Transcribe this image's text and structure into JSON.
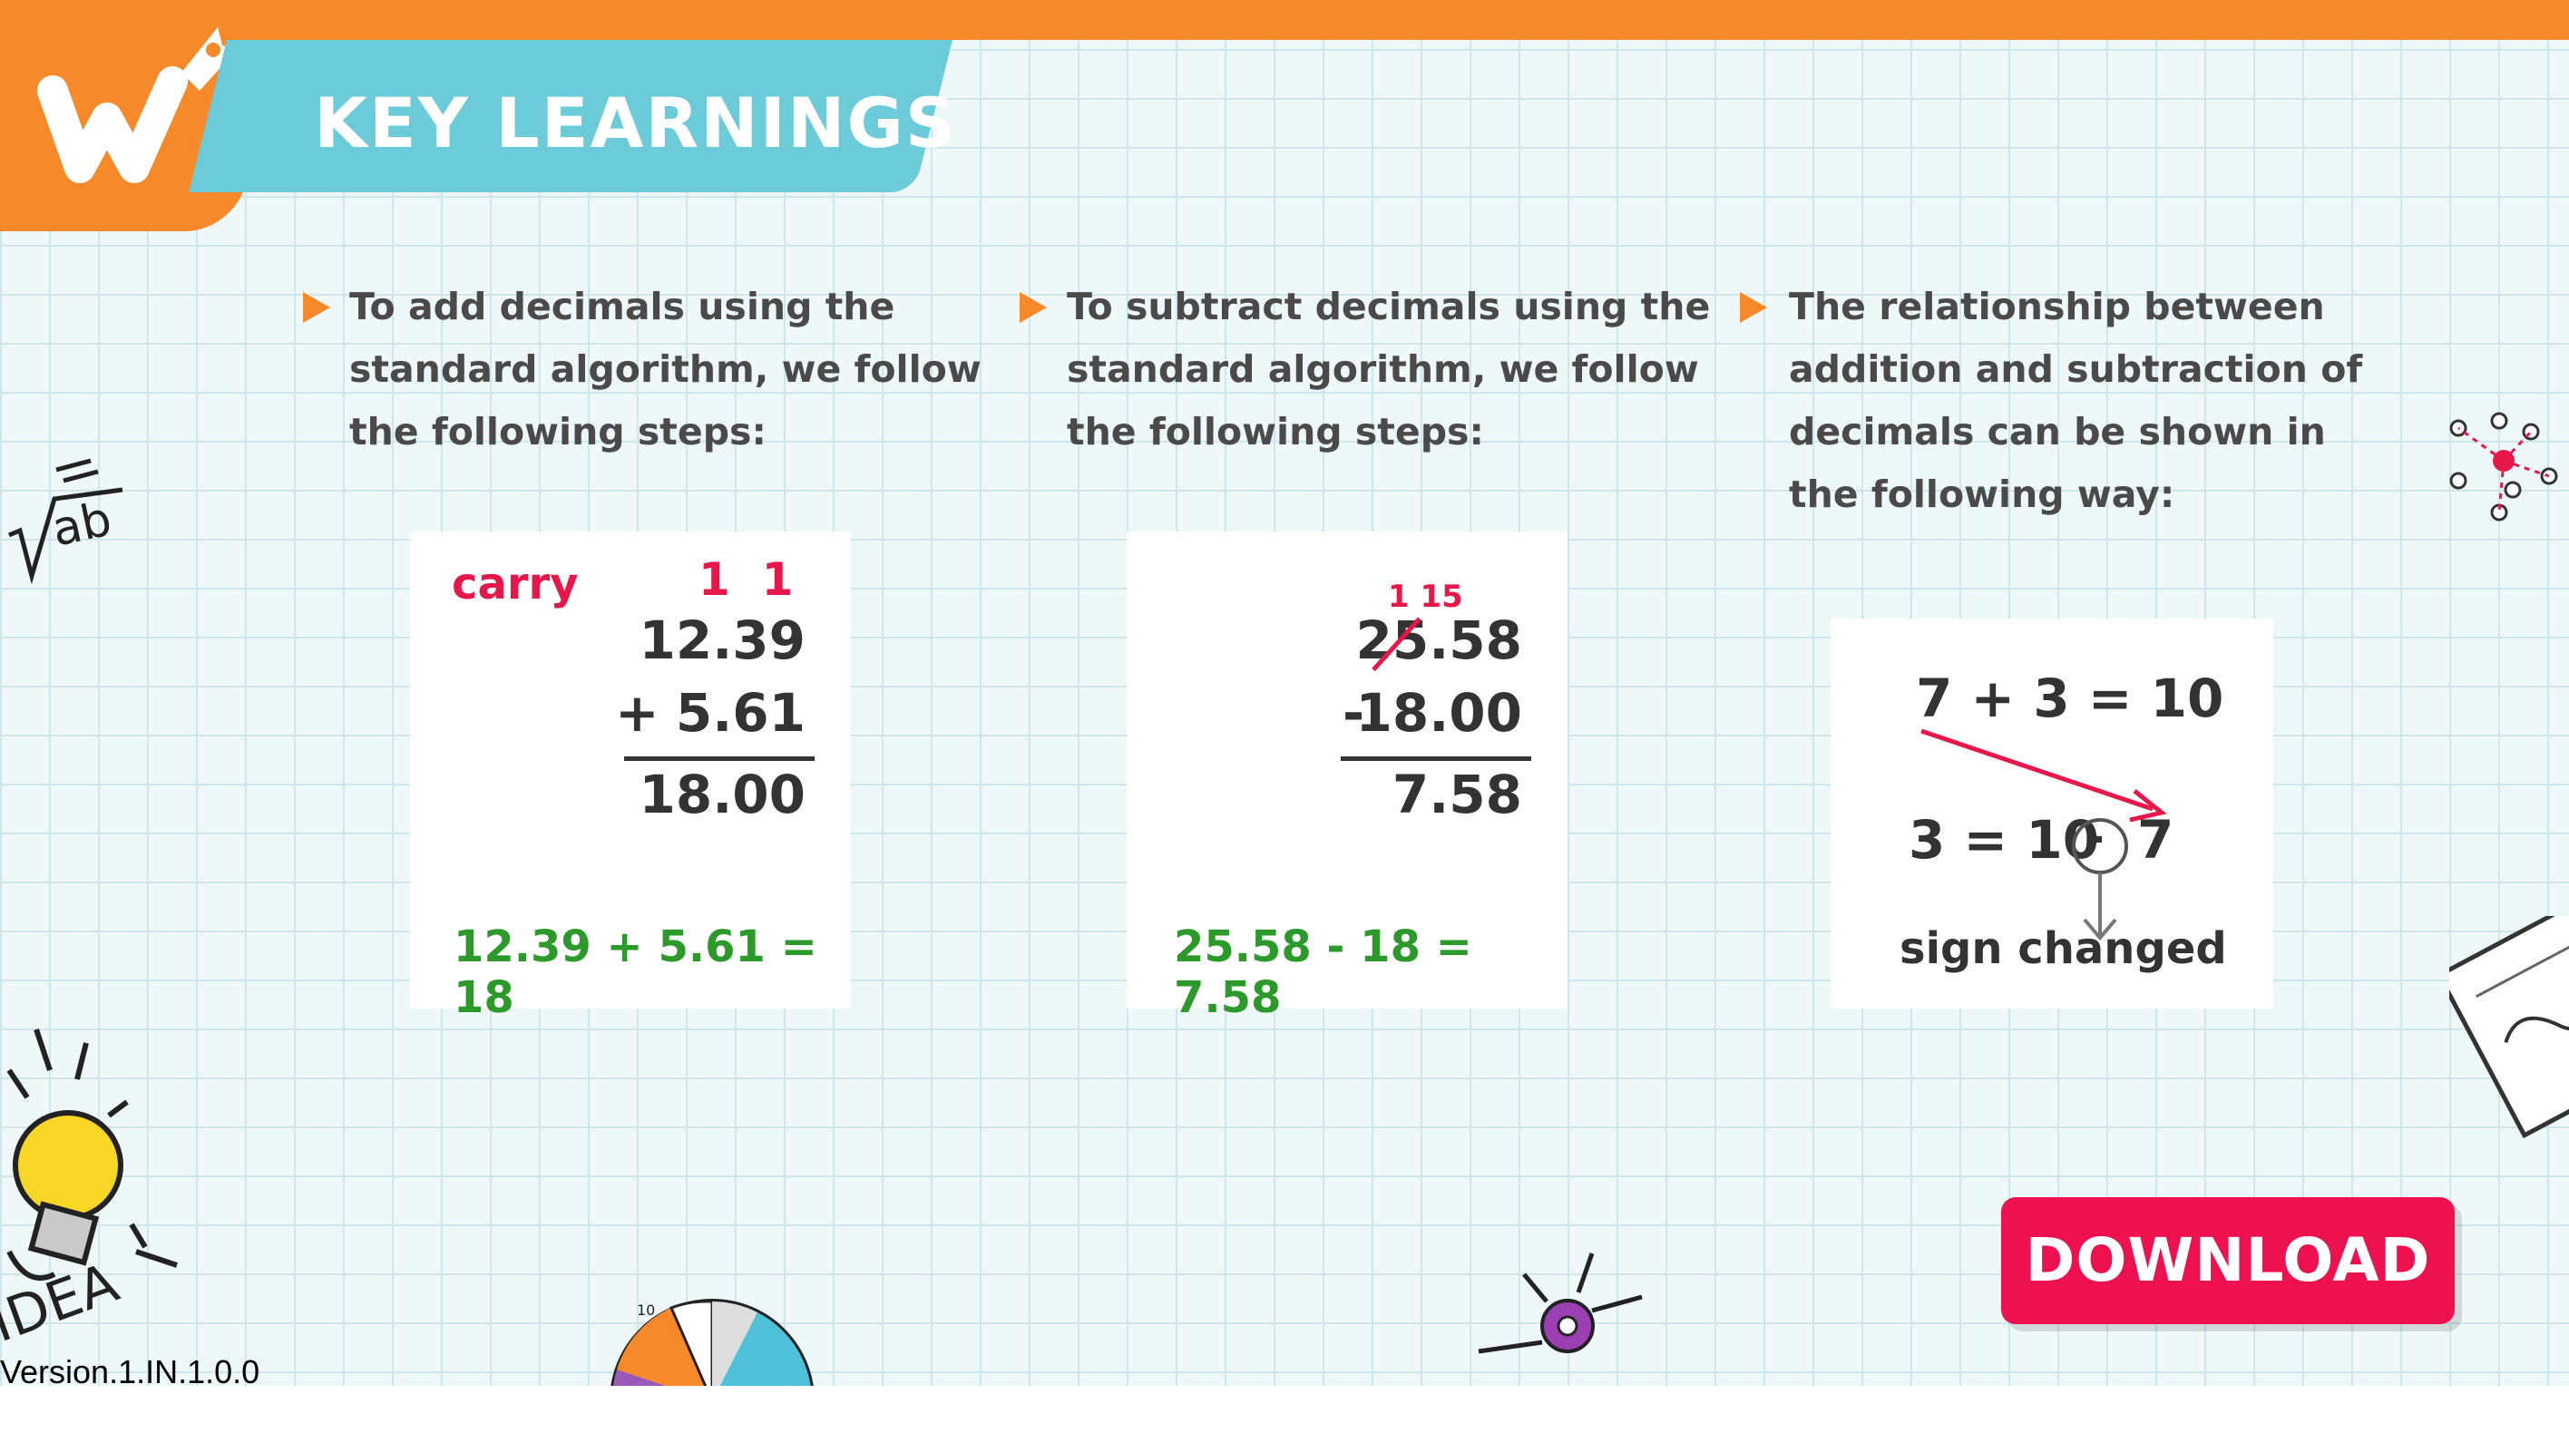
{
  "header": {
    "title": "KEY LEARNINGS",
    "logo_icon": "w-rocket-logo-icon"
  },
  "columns": [
    {
      "text_lines": [
        "To add decimals using the",
        "standard algorithm, we follow",
        "the following steps:"
      ],
      "card": {
        "carry_label": "carry",
        "carry_digits": "1  1",
        "line1": "12.39",
        "operator": "+",
        "line2": "5.61",
        "result": "18.00",
        "equation": "12.39 + 5.61 = 18"
      }
    },
    {
      "text_lines": [
        "To subtract decimals using the",
        "standard algorithm, we follow",
        "the following steps:"
      ],
      "card": {
        "borrow_digits": "1 15",
        "line1_struck": "25",
        "line1_rest": ".58",
        "operator": "-",
        "line2": "18.00",
        "result": "7.58",
        "equation": "25.58 - 18 = 7.58"
      }
    },
    {
      "text_lines": [
        "The relationship between",
        "addition and subtraction of",
        "decimals can be shown in",
        "the following way:"
      ],
      "card": {
        "eq1": "7 + 3 = 10",
        "eq2_left": "3 = 10",
        "eq2_sign": "-",
        "eq2_right": "7",
        "note": "sign changed"
      }
    }
  ],
  "download": {
    "label": "DOWNLOAD"
  },
  "footer": {
    "version": "Version.1.IN.1.0.0"
  },
  "colors": {
    "orange": "#f6892a",
    "teal": "#6ccbd8",
    "red": "#e8174a",
    "green": "#2c9a2a",
    "button": "#ee1150"
  }
}
